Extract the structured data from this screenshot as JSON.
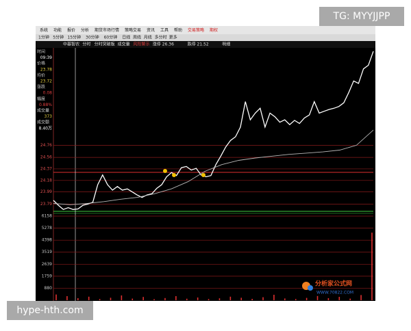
{
  "watermarks": {
    "top": "TG: MYYJJPP",
    "bottom": "hype-hth.com"
  },
  "menu": [
    "系统",
    "功能",
    "报价",
    "分析",
    "期货市场行情",
    "策略交易",
    "资讯",
    "工具",
    "帮助",
    "交易策略",
    "期权"
  ],
  "periods": [
    "1分钟",
    "5分钟",
    "15分钟",
    "30分钟",
    "60分钟",
    "日线",
    "周线",
    "月线",
    "多分时",
    "更多"
  ],
  "info_bar": [
    "中基智农",
    "分时",
    "分时突破板",
    "成交量",
    "风险警示",
    "涨停 26.36",
    "跌停 21.52",
    "明细"
  ],
  "left_panel": {
    "time_label": "时间",
    "time": "09:39",
    "price": "23.78",
    "avg": "23.72",
    "change_label": "涨跌",
    "change": "0.08",
    "pct_label": "幅度",
    "pct": "0.88%",
    "vol_label": "成交量",
    "vol": "373",
    "amount_label": "成交额",
    "amount": "8.40万"
  },
  "logo": {
    "name": "分析家公式网",
    "url": "WWW.70822.COM"
  },
  "chart_data": [
    {
      "type": "line",
      "ylim": [
        23.67,
        26.31
      ],
      "yticks": [
        23.79,
        23.99,
        24.18,
        24.37,
        24.56,
        24.76
      ],
      "grid": true,
      "series": [
        {
          "name": "价格",
          "color": "#ffffff",
          "values": [
            23.85,
            23.77,
            23.7,
            23.73,
            23.7,
            23.71,
            23.77,
            23.79,
            23.82,
            24.11,
            24.27,
            24.11,
            24.02,
            24.08,
            24.02,
            24.04,
            23.99,
            23.94,
            23.9,
            23.94,
            23.96,
            24.05,
            24.11,
            24.24,
            24.31,
            24.26,
            24.39,
            24.41,
            24.35,
            24.38,
            24.27,
            24.24,
            24.26,
            24.44,
            24.58,
            24.73,
            24.84,
            24.9,
            25.06,
            25.48,
            25.18,
            25.29,
            25.37,
            25.06,
            25.29,
            25.23,
            25.14,
            25.18,
            25.1,
            25.17,
            25.12,
            25.21,
            25.26,
            25.48,
            25.29,
            25.32,
            25.35,
            25.37,
            25.4,
            25.46,
            25.63,
            25.82,
            25.78,
            26.02,
            26.08,
            26.31
          ]
        },
        {
          "name": "均价",
          "color": "#b8b8b8",
          "values": [
            23.8,
            23.78,
            23.8,
            23.83,
            23.87,
            23.9,
            23.96,
            24.04,
            24.16,
            24.33,
            24.44,
            24.51,
            24.55,
            24.58,
            24.61,
            24.63,
            24.65,
            24.68,
            24.76,
            25.01
          ]
        }
      ]
    },
    {
      "type": "bar",
      "color": "#e03030",
      "ylim": [
        0,
        6360
      ],
      "yticks": [
        880,
        1759,
        2639,
        3519,
        4398,
        5278,
        6158
      ],
      "values": [
        420,
        300,
        150,
        260,
        90,
        180,
        350,
        120,
        240,
        80,
        160,
        300,
        110,
        200,
        90,
        140,
        260,
        180,
        100,
        220,
        400,
        130,
        90,
        170,
        310,
        150,
        250,
        120,
        380,
        4950
      ]
    }
  ]
}
